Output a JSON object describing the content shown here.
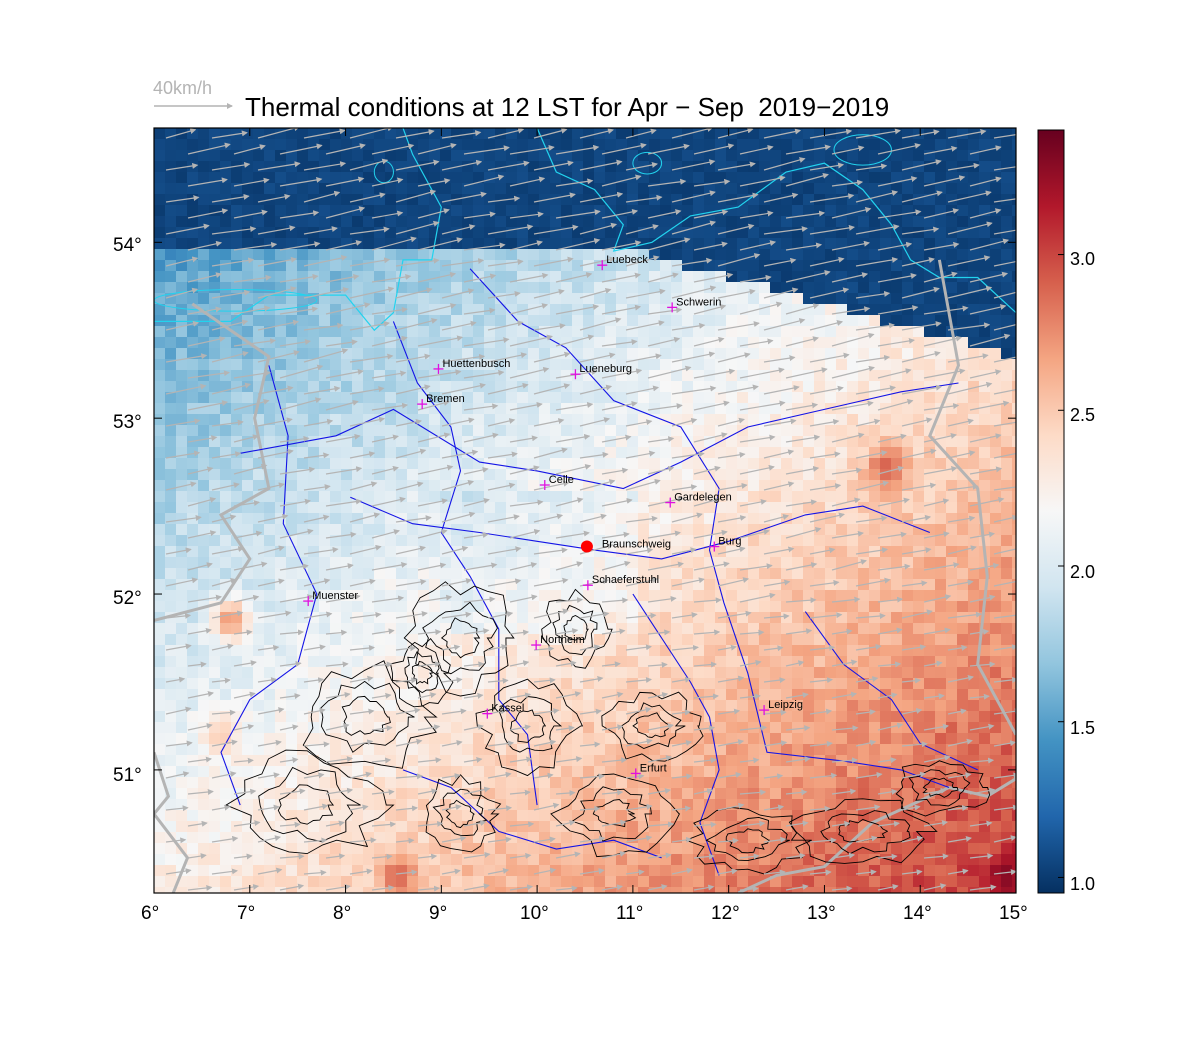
{
  "title": "Thermal conditions at 12 LST for Apr − Sep  2019−2019",
  "wind_reference": {
    "label": "40km/h",
    "color": "#b4b4b4"
  },
  "map": {
    "lon_range": [
      6,
      15
    ],
    "lat_range": [
      50.3,
      54.65
    ],
    "x_ticks": [
      "6°",
      "7°",
      "8°",
      "9°",
      "10°",
      "11°",
      "12°",
      "13°",
      "14°",
      "15°"
    ],
    "y_ticks": [
      "54°",
      "53°",
      "52°",
      "51°"
    ],
    "colorbar": {
      "min": 0.95,
      "max": 3.4,
      "ticks": [
        "1.0",
        "1.5",
        "2.0",
        "2.5",
        "3.0"
      ],
      "colormap": [
        "#053061",
        "#2166ac",
        "#4393c3",
        "#92c5de",
        "#d1e5f0",
        "#f7f7f7",
        "#fddbc7",
        "#f4a582",
        "#d6604d",
        "#b2182b",
        "#67001f"
      ]
    },
    "colors": {
      "coast": "#22d3ee",
      "rivers": "#1414e6",
      "borders": "#b4b4b4",
      "terrain_contours": "#000000",
      "wind_arrows": "#b4b4b4",
      "city_marker": "#e010e0",
      "home_marker": "#ff0000"
    },
    "home": {
      "name": "Braunschweig",
      "lon": 10.52,
      "lat": 52.27
    },
    "cities": [
      {
        "name": "Luebeck",
        "lon": 10.68,
        "lat": 53.87
      },
      {
        "name": "Schwerin",
        "lon": 11.41,
        "lat": 53.63
      },
      {
        "name": "Huettenbusch",
        "lon": 8.97,
        "lat": 53.28
      },
      {
        "name": "Lueneburg",
        "lon": 10.4,
        "lat": 53.25
      },
      {
        "name": "Bremen",
        "lon": 8.8,
        "lat": 53.08
      },
      {
        "name": "Celle",
        "lon": 10.08,
        "lat": 52.62
      },
      {
        "name": "Gardelegen",
        "lon": 11.39,
        "lat": 52.52
      },
      {
        "name": "Burg",
        "lon": 11.85,
        "lat": 52.27
      },
      {
        "name": "Muenster",
        "lon": 7.61,
        "lat": 51.96
      },
      {
        "name": "Schaeferstuhl",
        "lon": 10.53,
        "lat": 52.05
      },
      {
        "name": "Northeim",
        "lon": 9.99,
        "lat": 51.71
      },
      {
        "name": "Kassel",
        "lon": 9.48,
        "lat": 51.32
      },
      {
        "name": "Leipzig",
        "lon": 12.37,
        "lat": 51.34
      },
      {
        "name": "Erfurt",
        "lon": 11.03,
        "lat": 50.98
      }
    ]
  }
}
